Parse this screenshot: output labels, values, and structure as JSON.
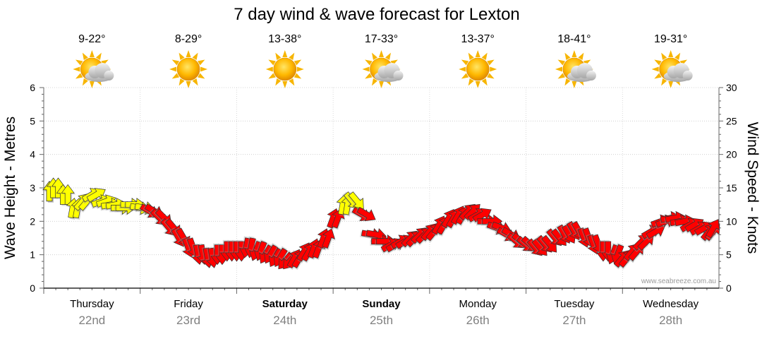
{
  "chart_data": {
    "type": "line",
    "title": "7 day wind & wave forecast for Lexton",
    "ylabel_left": "Wave Height - Metres",
    "ylabel_right": "Wind Speed - Knots",
    "ylim_left": [
      0,
      6
    ],
    "ylim_right": [
      0,
      30
    ],
    "yticks_left": [
      "0",
      "1",
      "2",
      "3",
      "4",
      "5",
      "6"
    ],
    "yticks_right": [
      "0",
      "5",
      "10",
      "15",
      "20",
      "25",
      "30"
    ],
    "grid": true,
    "credit": "www.seabreeze.com.au",
    "days": [
      {
        "name": "Thursday",
        "date": "22nd",
        "temp": "9-22°",
        "weather": "partly-cloudy",
        "bold": false
      },
      {
        "name": "Friday",
        "date": "23rd",
        "temp": "8-29°",
        "weather": "sunny",
        "bold": false
      },
      {
        "name": "Saturday",
        "date": "24th",
        "temp": "13-38°",
        "weather": "sunny",
        "bold": true
      },
      {
        "name": "Sunday",
        "date": "25th",
        "temp": "17-33°",
        "weather": "partly-cloudy",
        "bold": true
      },
      {
        "name": "Monday",
        "date": "26th",
        "temp": "13-37°",
        "weather": "sunny",
        "bold": false
      },
      {
        "name": "Tuesday",
        "date": "27th",
        "temp": "18-41°",
        "weather": "partly-cloudy",
        "bold": false
      },
      {
        "name": "Wednesday",
        "date": "28th",
        "temp": "19-31°",
        "weather": "partly-cloudy",
        "bold": false
      }
    ],
    "series": [
      {
        "unit": "knots",
        "colors": {
          "light": "#ffff00",
          "strong": "#ff0000",
          "outline": "#333333"
        },
        "comment_direction": "arrow direction in degrees the wind blows toward; 0 = up",
        "x": [
          0.0,
          0.1,
          0.2,
          0.3,
          0.4,
          0.5,
          0.6,
          0.7,
          0.8,
          0.9,
          1.0,
          1.1,
          1.2,
          1.3,
          1.4,
          1.5,
          1.6,
          1.7,
          1.8,
          1.9,
          2.0,
          2.1,
          2.2,
          2.3,
          2.4,
          2.5,
          2.6,
          2.7,
          2.8,
          2.9,
          3.0,
          3.1,
          3.2,
          3.3,
          3.4,
          3.5,
          3.6,
          3.7,
          3.8,
          3.9,
          4.0,
          4.1,
          4.2,
          4.3,
          4.4,
          4.5,
          4.6,
          4.7,
          4.8,
          4.9,
          5.0,
          5.1,
          5.2,
          5.3,
          5.4,
          5.5,
          5.6,
          5.7,
          5.8,
          5.9,
          6.0,
          6.1,
          6.2,
          6.3,
          6.4,
          6.5,
          6.6,
          6.7,
          6.8,
          6.9,
          7.0
        ],
        "values": [
          14.5,
          15.0,
          14.0,
          12.0,
          13.0,
          14.0,
          13.0,
          12.5,
          12.0,
          12.5,
          12.0,
          11.5,
          10.5,
          9.0,
          7.5,
          6.0,
          5.0,
          4.5,
          5.0,
          5.5,
          5.5,
          6.0,
          5.5,
          5.0,
          4.5,
          4.0,
          4.5,
          5.5,
          6.0,
          7.5,
          10.5,
          12.5,
          13.0,
          11.0,
          8.0,
          7.0,
          6.5,
          7.0,
          7.5,
          8.0,
          8.5,
          9.5,
          10.5,
          11.0,
          11.5,
          11.0,
          10.0,
          9.0,
          8.0,
          7.0,
          6.5,
          6.0,
          6.5,
          7.5,
          8.0,
          8.5,
          7.5,
          6.5,
          5.5,
          5.0,
          4.5,
          5.5,
          7.0,
          8.5,
          10.0,
          10.5,
          10.0,
          9.5,
          9.0,
          8.5,
          9.0
        ],
        "direction": [
          0,
          0,
          0,
          10,
          40,
          60,
          70,
          80,
          90,
          90,
          100,
          120,
          135,
          140,
          150,
          160,
          170,
          170,
          180,
          180,
          180,
          190,
          200,
          210,
          210,
          220,
          30,
          30,
          20,
          20,
          20,
          10,
          140,
          120,
          100,
          90,
          60,
          60,
          45,
          45,
          40,
          30,
          30,
          30,
          45,
          60,
          90,
          110,
          120,
          130,
          130,
          140,
          140,
          140,
          150,
          150,
          160,
          160,
          180,
          200,
          40,
          40,
          45,
          60,
          70,
          80,
          80,
          60,
          60,
          40,
          30
        ]
      },
      {
        "unit": "metres",
        "color": "#000000",
        "x": [
          0.0,
          0.5,
          1.0,
          1.5,
          2.0,
          2.5,
          3.0,
          3.5,
          4.0,
          4.5,
          5.0,
          5.5,
          6.0,
          6.5,
          7.0
        ],
        "values": [
          0.0,
          0.0,
          0.0,
          0.0,
          0.0,
          0.0,
          0.0,
          0.0,
          0.0,
          0.0,
          0.0,
          0.0,
          0.0,
          0.0,
          0.0
        ]
      }
    ]
  }
}
